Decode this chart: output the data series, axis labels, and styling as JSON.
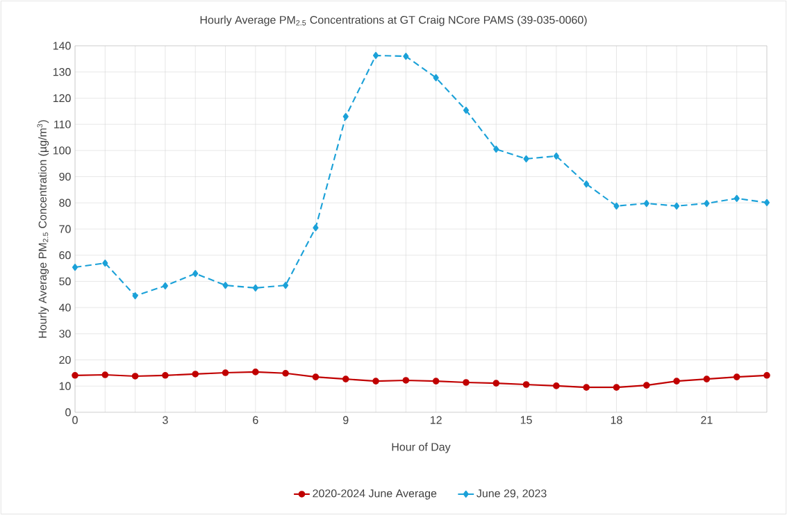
{
  "chart_data": {
    "type": "line",
    "title": "Hourly Average PM$_{2.5}$ Concentrations at GT Craig NCore PAMS (39-035-0060)",
    "xlabel": "Hour of Day",
    "ylabel": "Hourly Average PM$_{2.5}$ Concentration (µg/m$^{3}$)",
    "x": [
      0,
      1,
      2,
      3,
      4,
      5,
      6,
      7,
      8,
      9,
      10,
      11,
      12,
      13,
      14,
      15,
      16,
      17,
      18,
      19,
      20,
      21,
      22,
      23
    ],
    "series": [
      {
        "name": "2020-2024 June Average",
        "color": "#c00000",
        "marker": "circle",
        "line_style": "solid",
        "values": [
          14.1,
          14.3,
          13.8,
          14.1,
          14.6,
          15.1,
          15.4,
          14.9,
          13.5,
          12.7,
          11.9,
          12.2,
          11.9,
          11.4,
          11.1,
          10.6,
          10.1,
          9.5,
          9.5,
          10.3,
          11.9,
          12.7,
          13.5,
          14.1
        ]
      },
      {
        "name": "June 29, 2023",
        "color": "#1ba1d8",
        "marker": "diamond",
        "line_style": "dashed",
        "values": [
          55.4,
          57.0,
          44.5,
          48.3,
          53.0,
          48.5,
          47.5,
          48.5,
          70.5,
          113,
          136.3,
          136,
          127.8,
          115.4,
          100.5,
          96.8,
          97.9,
          87.2,
          78.8,
          79.8,
          78.8,
          79.8,
          81.7,
          80.1
        ]
      }
    ],
    "xlim": [
      0,
      23
    ],
    "xticks": [
      0,
      {
        "value": 1,
        "label": null
      },
      {
        "value": 2,
        "label": null
      },
      3,
      {
        "value": 4,
        "label": null
      },
      {
        "value": 5,
        "label": null
      },
      6,
      {
        "value": 7,
        "label": null
      },
      {
        "value": 8,
        "label": null
      },
      9,
      {
        "value": 10,
        "label": null
      },
      {
        "value": 11,
        "label": null
      },
      12,
      {
        "value": 13,
        "label": null
      },
      {
        "value": 14,
        "label": null
      },
      15,
      {
        "value": 16,
        "label": null
      },
      {
        "value": 17,
        "label": null
      },
      18,
      {
        "value": 19,
        "label": null
      },
      {
        "value": 20,
        "label": null
      },
      21,
      {
        "value": 22,
        "label": null
      },
      {
        "value": 23,
        "label": null
      }
    ],
    "ylim": [
      0,
      140
    ],
    "yticks": [
      0,
      10,
      20,
      30,
      40,
      50,
      60,
      70,
      80,
      90,
      100,
      110,
      120,
      130,
      140
    ],
    "grid": true,
    "legend": "bottom"
  }
}
